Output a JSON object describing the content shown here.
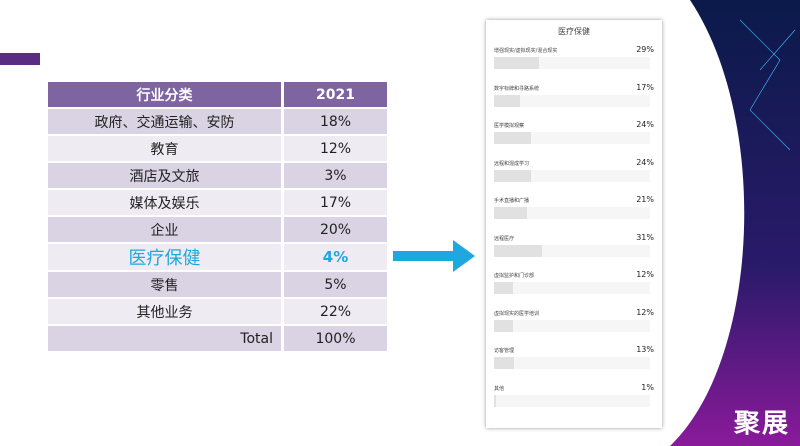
{
  "table": {
    "headers": [
      "行业分类",
      "2021"
    ],
    "rows": [
      [
        "政府、交通运输、安防",
        "18%"
      ],
      [
        "教育",
        "12%"
      ],
      [
        "酒店及文旅",
        "3%"
      ],
      [
        "媒体及娱乐",
        "17%"
      ],
      [
        "企业",
        "20%"
      ],
      [
        "医疗保健",
        "4%"
      ],
      [
        "零售",
        "5%"
      ],
      [
        "其他业务",
        "22%"
      ],
      [
        "Total",
        "100%"
      ]
    ],
    "highlight_color": "#1ea8e0",
    "header_color": "#7e64a0"
  },
  "panel": {
    "title": "医疗保健",
    "items": [
      {
        "label": "增强现实/虚拟现实/混合现实",
        "value": "29%",
        "pct": 29
      },
      {
        "label": "数字标牌和寻路系统",
        "value": "17%",
        "pct": 17
      },
      {
        "label": "医学模拟观察",
        "value": "24%",
        "pct": 24
      },
      {
        "label": "远程和混成学习",
        "value": "24%",
        "pct": 24
      },
      {
        "label": "手术直播和广播",
        "value": "21%",
        "pct": 21
      },
      {
        "label": "远程医疗",
        "value": "31%",
        "pct": 31
      },
      {
        "label": "虚拟监护和门诊部",
        "value": "12%",
        "pct": 12
      },
      {
        "label": "虚拟现实的医学培训",
        "value": "12%",
        "pct": 12
      },
      {
        "label": "访客管理",
        "value": "13%",
        "pct": 13
      },
      {
        "label": "其他",
        "value": "1%",
        "pct": 1
      }
    ]
  },
  "logo": "聚展"
}
